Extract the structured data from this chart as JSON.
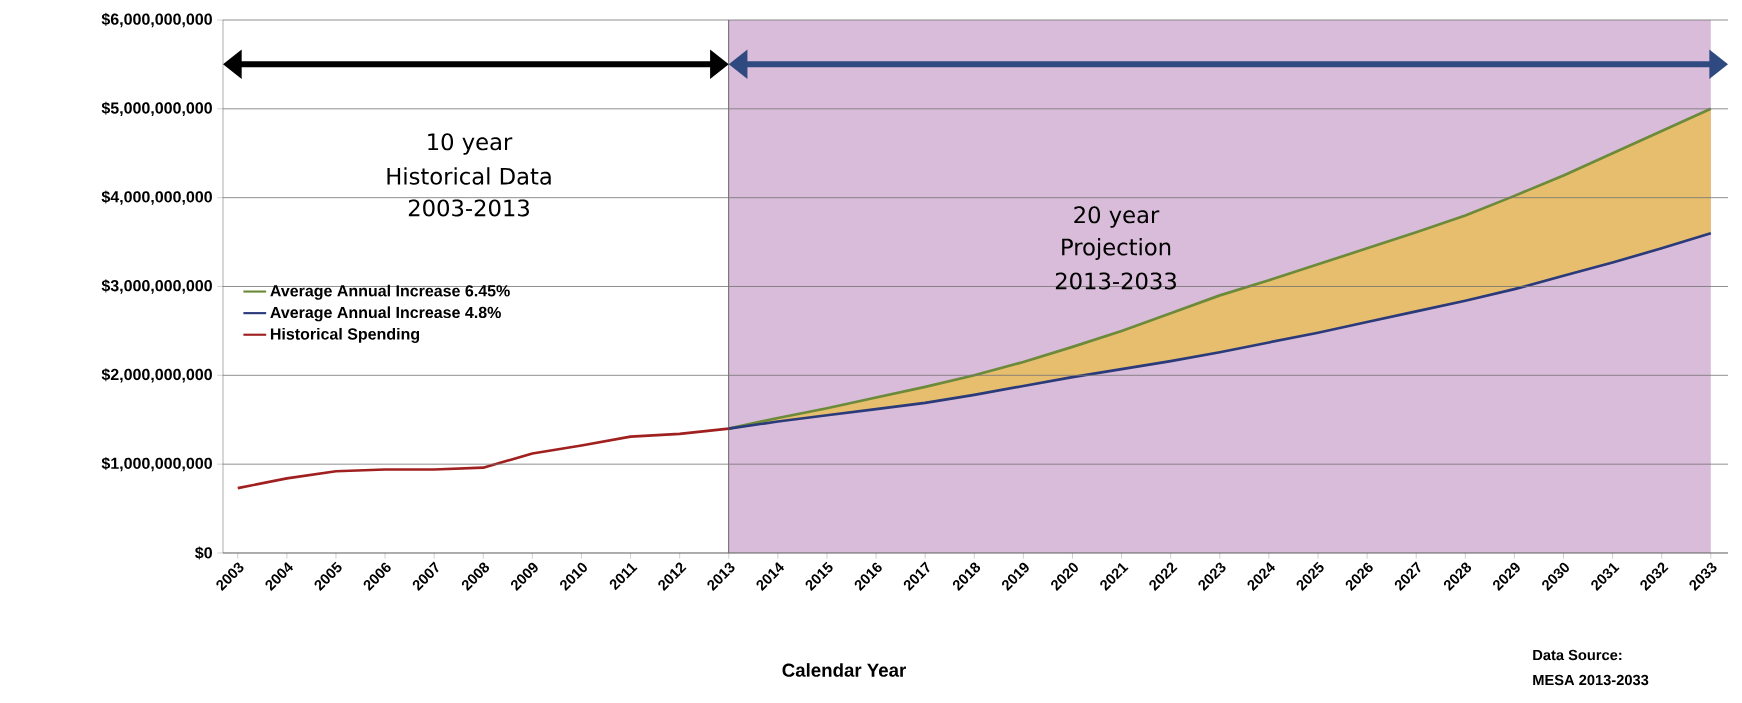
{
  "chart_data": {
    "type": "line",
    "xlabel": "Calendar Year",
    "categories": [
      "2003",
      "2004",
      "2005",
      "2006",
      "2007",
      "2008",
      "2009",
      "2010",
      "2011",
      "2012",
      "2013",
      "2014",
      "2015",
      "2016",
      "2017",
      "2018",
      "2019",
      "2020",
      "2021",
      "2022",
      "2023",
      "2024",
      "2025",
      "2026",
      "2027",
      "2028",
      "2029",
      "2030",
      "2031",
      "2032",
      "2033"
    ],
    "series": [
      {
        "name": "Average Annual Increase 6.45%",
        "color": "#6b8a3a",
        "values": [
          null,
          null,
          null,
          null,
          null,
          null,
          null,
          null,
          null,
          null,
          1400000000,
          1520000000,
          1630000000,
          1750000000,
          1870000000,
          2000000000,
          2150000000,
          2320000000,
          2500000000,
          2700000000,
          2900000000,
          3070000000,
          3250000000,
          3430000000,
          3610000000,
          3800000000,
          4020000000,
          4250000000,
          4500000000,
          4750000000,
          5000000000
        ],
        "lower": [
          null,
          null,
          null,
          null,
          null,
          null,
          null,
          null,
          null,
          null,
          1400000000,
          1480000000,
          1550000000,
          1620000000,
          1690000000,
          1780000000,
          1880000000,
          1980000000,
          2070000000,
          2160000000,
          2260000000,
          2370000000,
          2480000000,
          2600000000,
          2720000000,
          2840000000,
          2970000000,
          3120000000,
          3270000000,
          3430000000,
          3600000000
        ],
        "upper": [
          null,
          null,
          null,
          null,
          null,
          null,
          null,
          null,
          null,
          null,
          1400000000,
          1520000000,
          1630000000,
          1750000000,
          1870000000,
          2000000000,
          2150000000,
          2320000000,
          2500000000,
          2700000000,
          2900000000,
          3070000000,
          3250000000,
          3430000000,
          3610000000,
          3800000000,
          4020000000,
          4250000000,
          4500000000,
          4750000000,
          5000000000
        ]
      },
      {
        "name": "Average Annual Increase 4.8%",
        "color": "#2a3a7a",
        "values": [
          null,
          null,
          null,
          null,
          null,
          null,
          null,
          null,
          null,
          null,
          1400000000,
          1480000000,
          1550000000,
          1620000000,
          1690000000,
          1780000000,
          1880000000,
          1980000000,
          2070000000,
          2160000000,
          2260000000,
          2370000000,
          2480000000,
          2600000000,
          2720000000,
          2840000000,
          2970000000,
          3120000000,
          3270000000,
          3430000000,
          3600000000
        ]
      },
      {
        "name": "Historical Spending",
        "color": "#a02020",
        "values": [
          730000000,
          840000000,
          920000000,
          940000000,
          940000000,
          960000000,
          1120000000,
          1210000000,
          1310000000,
          1340000000,
          1400000000,
          null,
          null,
          null,
          null,
          null,
          null,
          null,
          null,
          null,
          null,
          null,
          null,
          null,
          null,
          null,
          null,
          null,
          null,
          null,
          null
        ]
      }
    ],
    "ylim": [
      0,
      6000000000
    ],
    "yticks": [
      {
        "value": 0,
        "label": "$0"
      },
      {
        "value": 1000000000,
        "label": "$1,000,000,000"
      },
      {
        "value": 2000000000,
        "label": "$2,000,000,000"
      },
      {
        "value": 3000000000,
        "label": "$3,000,000,000"
      },
      {
        "value": 4000000000,
        "label": "$4,000,000,000"
      },
      {
        "value": 5000000000,
        "label": "$5,000,000,000"
      },
      {
        "value": 6000000000,
        "label": "$6,000,000,000"
      }
    ],
    "grid": "y",
    "legend": "left",
    "marker": "none",
    "line_style": "solid",
    "bands": [
      {
        "axis": "x",
        "from": "2013",
        "to": "2033",
        "color": "#d9bcd9"
      }
    ],
    "ref_lines": [
      {
        "axis": "x",
        "value": "2013",
        "color": "#4c4c4c"
      }
    ],
    "annotations": [
      "10 year",
      "Historical Data",
      "2003-2013",
      "20 year",
      "Projection",
      "2013-2033",
      "Data Source:",
      "MESA 2013-2033"
    ]
  }
}
